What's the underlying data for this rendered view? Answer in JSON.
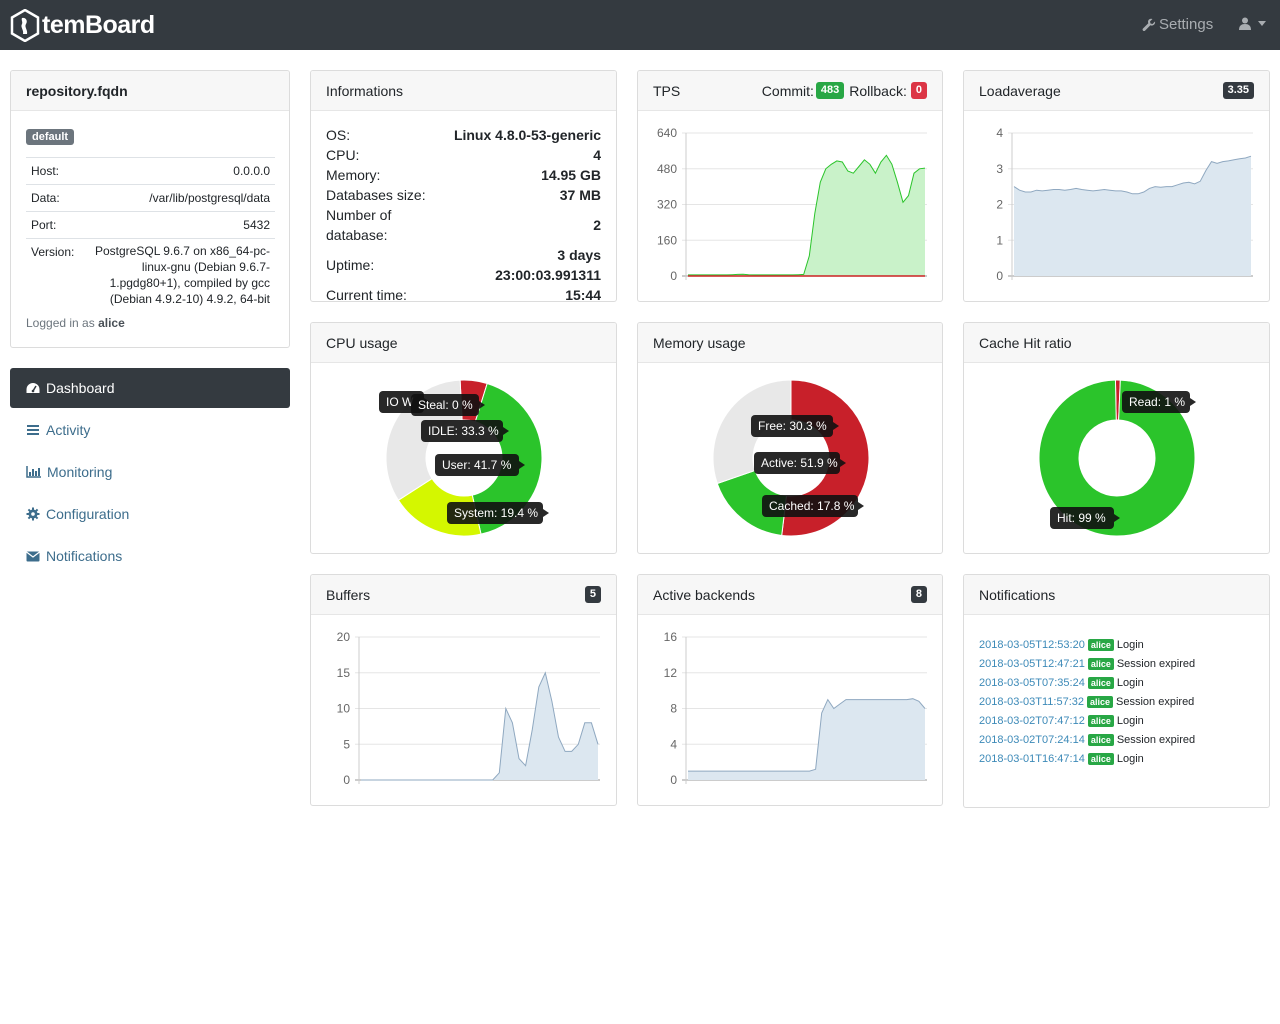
{
  "navbar": {
    "brand": "temBoard",
    "settings_label": "Settings"
  },
  "server": {
    "hostname": "repository.fqdn",
    "group_badge": "default",
    "rows": [
      {
        "label": "Host:",
        "value": "0.0.0.0"
      },
      {
        "label": "Data:",
        "value": "/var/lib/postgresql/data"
      },
      {
        "label": "Port:",
        "value": "5432"
      },
      {
        "label": "Version:",
        "value": "PostgreSQL 9.6.7 on x86_64-pc-linux-gnu (Debian 9.6.7-1.pgdg80+1), compiled by gcc (Debian 4.9.2-10) 4.9.2, 64-bit"
      }
    ],
    "logged_prefix": "Logged in as",
    "logged_user": "alice"
  },
  "sidenav": [
    {
      "label": "Dashboard",
      "icon": "dashboard-icon",
      "active": true
    },
    {
      "label": "Activity",
      "icon": "list-icon",
      "active": false
    },
    {
      "label": "Monitoring",
      "icon": "bar-chart-icon",
      "active": false
    },
    {
      "label": "Configuration",
      "icon": "gear-icon",
      "active": false
    },
    {
      "label": "Notifications",
      "icon": "envelope-icon",
      "active": false
    }
  ],
  "informations": {
    "title": "Informations",
    "os_label": "OS:",
    "os": "Linux 4.8.0-53-generic",
    "cpu_label": "CPU:",
    "cpu": "4",
    "memory_label": "Memory:",
    "memory": "14.95 GB",
    "dbsize_label": "Databases size:",
    "dbsize": "37 MB",
    "ndb_label": "Number of database:",
    "ndb": "2",
    "uptime_label": "Uptime:",
    "uptime": "3 days 23:00:03.991311",
    "time_label": "Current time:",
    "time": "15:44"
  },
  "tps": {
    "title": "TPS",
    "commit_label": "Commit:",
    "commit": "483",
    "rollback_label": "Rollback:",
    "rollback": "0"
  },
  "loadavg": {
    "title": "Loadaverage",
    "value": "3.35"
  },
  "cpu_usage": {
    "title": "CPU usage",
    "io_wait_fragment": "IO W"
  },
  "memory_usage": {
    "title": "Memory usage"
  },
  "cache_hit": {
    "title": "Cache Hit ratio"
  },
  "buffers": {
    "title": "Buffers",
    "value": "5"
  },
  "backends": {
    "title": "Active backends",
    "value": "8"
  },
  "notifications": {
    "title": "Notifications",
    "items": [
      {
        "date": "2018-03-05T12:53:20",
        "user": "alice",
        "msg": "Login"
      },
      {
        "date": "2018-03-05T12:47:21",
        "user": "alice",
        "msg": "Session expired"
      },
      {
        "date": "2018-03-05T07:35:24",
        "user": "alice",
        "msg": "Login"
      },
      {
        "date": "2018-03-03T11:57:32",
        "user": "alice",
        "msg": "Session expired"
      },
      {
        "date": "2018-03-02T07:47:12",
        "user": "alice",
        "msg": "Login"
      },
      {
        "date": "2018-03-02T07:24:14",
        "user": "alice",
        "msg": "Session expired"
      },
      {
        "date": "2018-03-01T16:47:14",
        "user": "alice",
        "msg": "Login"
      }
    ]
  },
  "colors": {
    "navbar": "#343a40",
    "green": "#28a745",
    "red": "#dc3545",
    "link": "#3d6d8c"
  },
  "chart_data": [
    {
      "type": "area",
      "name": "tps",
      "ylim": [
        0,
        640
      ],
      "yticks": [
        "640",
        "480",
        "320",
        "160",
        "0"
      ],
      "grid": true,
      "series": [
        {
          "name": "commit",
          "color": "#2bc42b",
          "values": [
            5,
            5,
            5,
            5,
            5,
            5,
            5,
            5,
            6,
            7,
            8,
            6,
            5,
            5,
            5,
            5,
            5,
            5,
            5,
            5,
            6,
            7,
            90,
            280,
            420,
            480,
            500,
            515,
            510,
            470,
            460,
            490,
            520,
            500,
            460,
            510,
            540,
            500,
            420,
            330,
            360,
            460,
            480,
            483
          ]
        },
        {
          "name": "rollback",
          "color": "#cc2222",
          "values": [
            0,
            0,
            0,
            0,
            0,
            0,
            0,
            0,
            0,
            0,
            0,
            0,
            0,
            0,
            0,
            0,
            0,
            0,
            0,
            0,
            0,
            0,
            0,
            0,
            0,
            0,
            0,
            0,
            0,
            0,
            0,
            0,
            0,
            0,
            0,
            0,
            0,
            0,
            0,
            0,
            0,
            0,
            0,
            0
          ]
        }
      ]
    },
    {
      "type": "area",
      "name": "loadaverage",
      "ylim": [
        0,
        4
      ],
      "yticks": [
        "4",
        "3",
        "2",
        "1",
        "0"
      ],
      "grid": true,
      "series": [
        {
          "name": "load1",
          "color": "#8fa8c0",
          "values": [
            2.5,
            2.4,
            2.35,
            2.35,
            2.4,
            2.38,
            2.4,
            2.42,
            2.42,
            2.4,
            2.42,
            2.45,
            2.42,
            2.4,
            2.38,
            2.4,
            2.42,
            2.4,
            2.38,
            2.38,
            2.35,
            2.3,
            2.3,
            2.35,
            2.45,
            2.5,
            2.48,
            2.5,
            2.5,
            2.55,
            2.6,
            2.62,
            2.58,
            2.65,
            2.95,
            3.2,
            3.15,
            3.2,
            3.22,
            3.25,
            3.28,
            3.3,
            3.35
          ]
        }
      ]
    },
    {
      "type": "pie",
      "name": "cpu_usage",
      "slices": [
        {
          "label": "User",
          "value": 41.7,
          "color": "#2bc42b"
        },
        {
          "label": "System",
          "value": 19.4,
          "color": "#d4f700"
        },
        {
          "label": "IDLE",
          "value": 33.3,
          "color": "#e8e8e8"
        },
        {
          "label": "IO Wait",
          "value": 5.6,
          "color": "#c8202a"
        },
        {
          "label": "Steal",
          "value": 0,
          "color": "#888888"
        }
      ],
      "tooltips": [
        "Steal: 0 %",
        "IDLE: 33.3 %",
        "User: 41.7 %",
        "System: 19.4 %"
      ]
    },
    {
      "type": "pie",
      "name": "memory_usage",
      "slices": [
        {
          "label": "Active",
          "value": 51.9,
          "color": "#c8202a"
        },
        {
          "label": "Cached",
          "value": 17.8,
          "color": "#2bc42b"
        },
        {
          "label": "Free",
          "value": 30.3,
          "color": "#e8e8e8"
        }
      ],
      "tooltips": [
        "Free: 30.3 %",
        "Active: 51.9 %",
        "Cached: 17.8 %"
      ]
    },
    {
      "type": "pie",
      "name": "cache_hit_ratio",
      "slices": [
        {
          "label": "Read",
          "value": 1,
          "color": "#c8202a"
        },
        {
          "label": "Hit",
          "value": 99,
          "color": "#2bc42b"
        }
      ],
      "tooltips": [
        "Read: 1 %",
        "Hit: 99 %"
      ]
    },
    {
      "type": "area",
      "name": "buffers",
      "ylim": [
        0,
        20
      ],
      "yticks": [
        "20",
        "15",
        "10",
        "5",
        "0"
      ],
      "grid": true,
      "series": [
        {
          "name": "buffers",
          "color": "#8fa8c0",
          "values": [
            0,
            0,
            0,
            0,
            0,
            0,
            0,
            0,
            0,
            0,
            0,
            0,
            0,
            0,
            0,
            0,
            0,
            0,
            0,
            0,
            0,
            1,
            10,
            8,
            3,
            2,
            7,
            13,
            15,
            11,
            6,
            4,
            4,
            5,
            8,
            8,
            5
          ]
        }
      ]
    },
    {
      "type": "area",
      "name": "active_backends",
      "ylim": [
        0,
        16
      ],
      "yticks": [
        "16",
        "12",
        "8",
        "4",
        "0"
      ],
      "grid": true,
      "series": [
        {
          "name": "backends",
          "color": "#8fa8c0",
          "values": [
            1,
            1,
            1,
            1,
            1,
            1,
            1,
            1,
            1,
            1,
            1,
            1,
            1,
            1,
            1,
            1,
            1,
            1,
            1,
            1,
            1,
            1.2,
            7.5,
            9,
            8,
            8.5,
            9,
            9,
            9,
            9,
            9,
            9,
            9,
            9,
            9,
            9,
            9,
            9.1,
            8.8,
            8
          ]
        }
      ]
    }
  ]
}
